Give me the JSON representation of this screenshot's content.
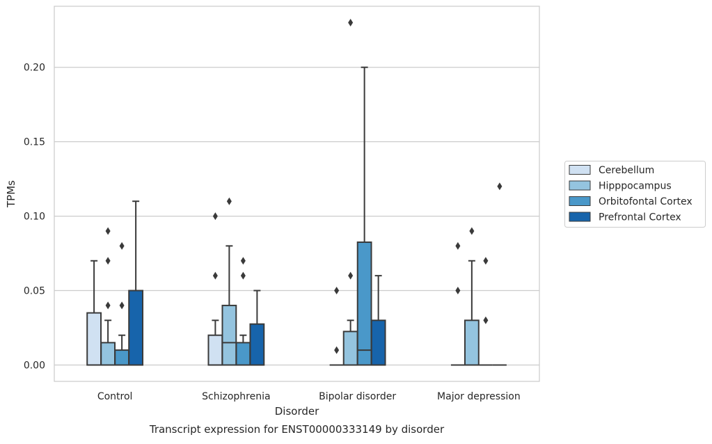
{
  "chart_data": {
    "type": "box",
    "caption": "Transcript expression for ENST00000333149 by disorder",
    "xlabel": "Disorder",
    "ylabel": "TPMs",
    "ylim": [
      -0.011,
      0.241
    ],
    "yticks": [
      "0.00",
      "0.05",
      "0.10",
      "0.15",
      "0.20"
    ],
    "grid": "horizontal",
    "legend_position": "right",
    "categories": [
      "Control",
      "Schizophrenia",
      "Bipolar disorder",
      "Major depression"
    ],
    "series": [
      {
        "name": "Cerebellum",
        "color": "#d0e1f2",
        "boxes": [
          {
            "q1": 0.0,
            "median": 0.0,
            "q3": 0.035,
            "whisker_low": 0.0,
            "whisker_high": 0.07,
            "outliers": []
          },
          {
            "q1": 0.0,
            "median": 0.0,
            "q3": 0.02,
            "whisker_low": 0.0,
            "whisker_high": 0.03,
            "outliers": [
              0.06,
              0.1
            ]
          },
          {
            "q1": 0.0,
            "median": 0.0,
            "q3": 0.0,
            "whisker_low": 0.0,
            "whisker_high": 0.0,
            "outliers": [
              0.01,
              0.05
            ]
          },
          {
            "q1": 0.0,
            "median": 0.0,
            "q3": 0.0,
            "whisker_low": 0.0,
            "whisker_high": 0.0,
            "outliers": [
              0.05,
              0.08
            ]
          }
        ]
      },
      {
        "name": "Hipppocampus",
        "color": "#94c4df",
        "boxes": [
          {
            "q1": 0.0,
            "median": 0.0,
            "q3": 0.015,
            "whisker_low": 0.0,
            "whisker_high": 0.03,
            "outliers": [
              0.04,
              0.07,
              0.09
            ]
          },
          {
            "q1": 0.0,
            "median": 0.015,
            "q3": 0.04,
            "whisker_low": 0.0,
            "whisker_high": 0.08,
            "outliers": [
              0.11
            ]
          },
          {
            "q1": 0.0,
            "median": 0.0,
            "q3": 0.0225,
            "whisker_low": 0.0,
            "whisker_high": 0.03,
            "outliers": [
              0.06,
              0.23
            ]
          },
          {
            "q1": 0.0,
            "median": 0.0,
            "q3": 0.03,
            "whisker_low": 0.0,
            "whisker_high": 0.07,
            "outliers": [
              0.09
            ]
          }
        ]
      },
      {
        "name": "Orbitofontal Cortex",
        "color": "#4a98c9",
        "boxes": [
          {
            "q1": 0.0,
            "median": 0.0,
            "q3": 0.01,
            "whisker_low": 0.0,
            "whisker_high": 0.02,
            "outliers": [
              0.04,
              0.08
            ]
          },
          {
            "q1": 0.0,
            "median": 0.0,
            "q3": 0.015,
            "whisker_low": 0.0,
            "whisker_high": 0.02,
            "outliers": [
              0.06,
              0.07
            ]
          },
          {
            "q1": 0.0,
            "median": 0.01,
            "q3": 0.0825,
            "whisker_low": 0.0,
            "whisker_high": 0.2,
            "outliers": []
          },
          {
            "q1": 0.0,
            "median": 0.0,
            "q3": 0.0,
            "whisker_low": 0.0,
            "whisker_high": 0.0,
            "outliers": [
              0.03,
              0.07
            ]
          }
        ]
      },
      {
        "name": "Prefrontal Cortex",
        "color": "#1764ab",
        "boxes": [
          {
            "q1": 0.0,
            "median": 0.0,
            "q3": 0.05,
            "whisker_low": 0.0,
            "whisker_high": 0.11,
            "outliers": []
          },
          {
            "q1": 0.0,
            "median": 0.0,
            "q3": 0.0275,
            "whisker_low": 0.0,
            "whisker_high": 0.05,
            "outliers": []
          },
          {
            "q1": 0.0,
            "median": 0.0,
            "q3": 0.03,
            "whisker_low": 0.0,
            "whisker_high": 0.06,
            "outliers": []
          },
          {
            "q1": 0.0,
            "median": 0.0,
            "q3": 0.0,
            "whisker_low": 0.0,
            "whisker_high": 0.0,
            "outliers": [
              0.12
            ]
          }
        ]
      }
    ]
  }
}
